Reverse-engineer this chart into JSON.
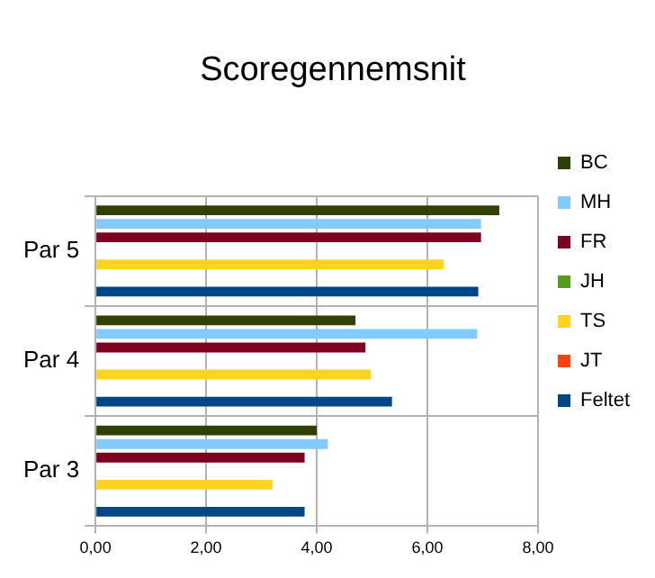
{
  "chart_data": {
    "type": "bar",
    "orientation": "horizontal",
    "title": "Scoregennemsnit",
    "categories": [
      "Par 5",
      "Par 4",
      "Par 3"
    ],
    "series": [
      {
        "name": "BC",
        "color": "#314004",
        "values": [
          7.3,
          4.7,
          4.0
        ]
      },
      {
        "name": "MH",
        "color": "#83caff",
        "values": [
          6.97,
          6.9,
          4.2
        ]
      },
      {
        "name": "FR",
        "color": "#7e0021",
        "values": [
          6.97,
          4.88,
          3.78
        ]
      },
      {
        "name": "JH",
        "color": "#579d1c",
        "values": [
          null,
          null,
          null
        ]
      },
      {
        "name": "TS",
        "color": "#ffd320",
        "values": [
          6.3,
          4.98,
          3.2
        ]
      },
      {
        "name": "JT",
        "color": "#ff420e",
        "values": [
          null,
          null,
          null
        ]
      },
      {
        "name": "Feltet",
        "color": "#004586",
        "values": [
          6.92,
          5.36,
          3.78
        ]
      }
    ],
    "xlim": [
      0,
      8
    ],
    "xticks": [
      {
        "value": 0,
        "label": "0,00"
      },
      {
        "value": 2,
        "label": "2,00"
      },
      {
        "value": 4,
        "label": "4,00"
      },
      {
        "value": 6,
        "label": "6,00"
      },
      {
        "value": 8,
        "label": "8,00"
      }
    ],
    "grid": true,
    "legend": "right"
  }
}
